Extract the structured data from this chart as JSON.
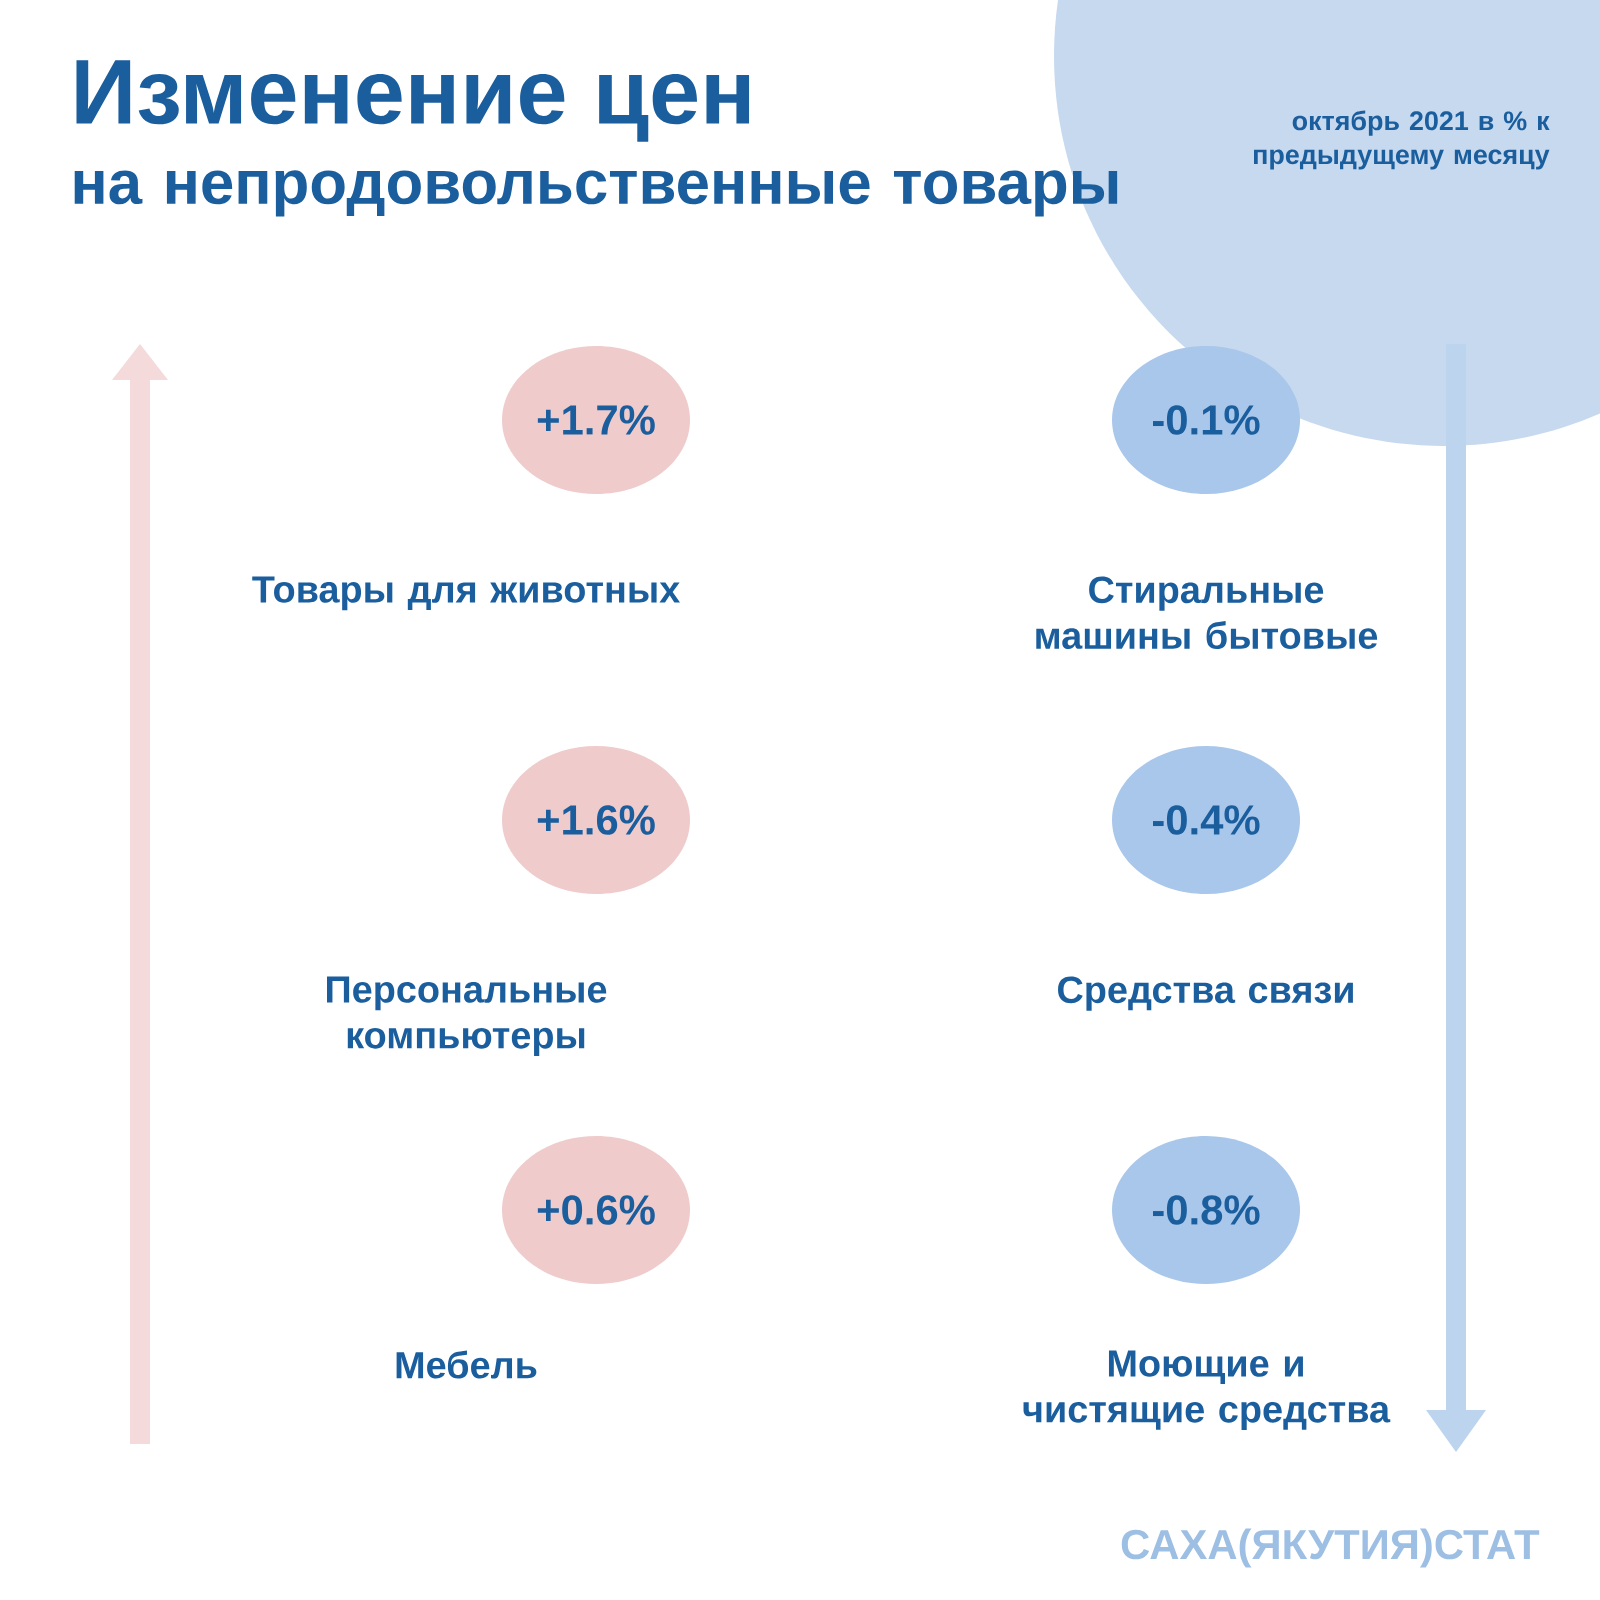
{
  "chart_data": {
    "type": "other",
    "title": "Изменение цен",
    "subtitle": "на непродовольственные товары",
    "categories": [
      "Товары для животных",
      "Стиральные машины бытовые",
      "Персональные компьютеры",
      "Средства связи",
      "Мебель",
      "Моющие и чистящие средства"
    ],
    "values": [
      1.7,
      -0.1,
      1.6,
      -0.4,
      0.6,
      -0.8
    ],
    "value_labels": [
      "+1.7%",
      "-0.1%",
      "+1.6%",
      "-0.4%",
      "+0.6%",
      "-0.8%"
    ],
    "colors": [
      "#efcbcb",
      "#a9c7ea",
      "#efcbcb",
      "#a9c7ea",
      "#efcbcb",
      "#a9c7ea"
    ],
    "annotations": [
      "октябрь 2021 в % к предыдущему месяцу",
      "САХА(ЯКУТИЯ)СТАТ"
    ]
  }
}
